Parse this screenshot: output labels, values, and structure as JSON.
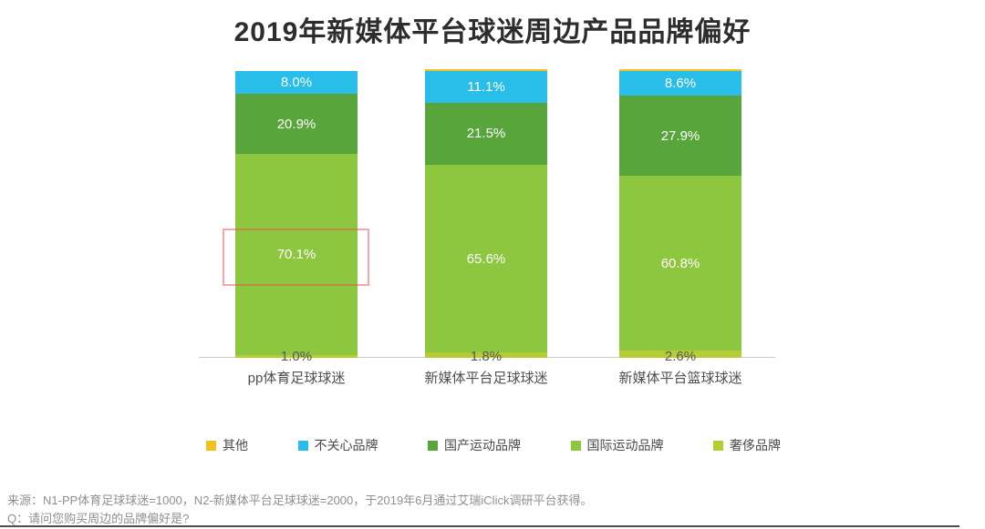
{
  "title": "2019年新媒体平台球迷周边产品品牌偏好",
  "chart_data": {
    "type": "bar",
    "stacked": true,
    "unit": "%",
    "ylim": [
      0,
      100
    ],
    "grid": false,
    "legend_position": "bottom",
    "categories": [
      "pp体育足球球迷",
      "新媒体平台足球球迷",
      "新媒体平台篮球球迷"
    ],
    "series": [
      {
        "name": "其他",
        "color": "#f2c11c",
        "values": [
          0,
          0.1,
          0.1
        ],
        "labels": [
          "",
          "",
          ""
        ]
      },
      {
        "name": "不关心品牌",
        "color": "#29bde9",
        "values": [
          8.0,
          11.1,
          8.6
        ],
        "labels": [
          "8.0%",
          "11.1%",
          "8.6%"
        ]
      },
      {
        "name": "国产运动品牌",
        "color": "#58a63b",
        "values": [
          20.9,
          21.5,
          27.9
        ],
        "labels": [
          "20.9%",
          "21.5%",
          "27.9%"
        ]
      },
      {
        "name": "国际运动品牌",
        "color": "#8dc63f",
        "values": [
          70.1,
          65.6,
          60.8
        ],
        "labels": [
          "70.1%",
          "65.6%",
          "60.8%"
        ]
      },
      {
        "name": "奢侈品牌",
        "color": "#b6cc34",
        "values": [
          1.0,
          1.8,
          2.6
        ],
        "labels": [
          "1.0%",
          "1.8%",
          "2.6%"
        ]
      }
    ],
    "annotations": [
      {
        "type": "highlight-box",
        "note": "红框标注 pp体育足球球迷 国际运动品牌 70.1%"
      }
    ]
  },
  "footer": {
    "source": "来源：N1-PP体育足球球迷=1000，N2-新媒体平台足球球迷=2000，于2019年6月通过艾瑞iClick调研平台获得。",
    "question": "Q：请问您购买周边的品牌偏好是?"
  }
}
